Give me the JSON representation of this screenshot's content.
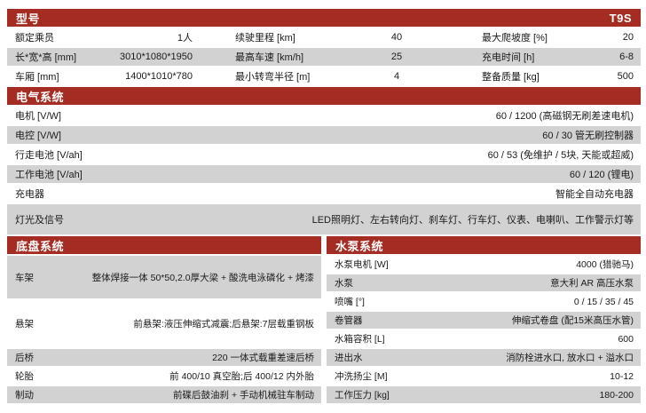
{
  "colors": {
    "accent": "#A52C22",
    "row_gray": "#D2D2D2",
    "header_text": "#FFFFFF",
    "body_text": "#1A1A1A"
  },
  "model_section": {
    "title": "型号",
    "model": "T9S",
    "rows": [
      {
        "label1": "额定乘员",
        "value1": "1人",
        "label2": "续驶里程 [km]",
        "value2": "40",
        "label3": "最大爬坡度 [%]",
        "value3": "20"
      },
      {
        "label1": "长*宽*高 [mm]",
        "value1": "3010*1080*1950",
        "label2": "最高车速 [km/h]",
        "value2": "25",
        "label3": "充电时间 [h]",
        "value3": "6-8"
      },
      {
        "label1": "车厢 [mm]",
        "value1": "1400*1010*780",
        "label2": "最小转弯半径 [m]",
        "value2": "4",
        "label3": "整备质量 [kg]",
        "value3": "500"
      }
    ]
  },
  "electrical_section": {
    "title": "电气系统",
    "rows": [
      {
        "label": "电机 [V/W]",
        "value": "60 / 1200 (高磁钢无刷差速电机)"
      },
      {
        "label": "电控 [V/W]",
        "value": "60 / 30 管无刷控制器"
      },
      {
        "label": "行走电池 [V/ah]",
        "value": "60 / 53 (免维护 / 5块, 天能或超威)"
      },
      {
        "label": "工作电池 [V/ah]",
        "value": "60 / 120 (锂电)"
      },
      {
        "label": "充电器",
        "value": "智能全自动充电器"
      },
      {
        "label": "灯光及信号",
        "value": "LED照明灯、左右转向灯、刹车灯、行车灯、仪表、电喇叭、工作警示灯等"
      }
    ]
  },
  "chassis_section": {
    "title": "底盘系统",
    "rows": [
      {
        "label": "车架",
        "value": "整体焊接一体 50*50,2.0厚大梁 + 酸洗电泳磷化 + 烤漆"
      },
      {
        "label": "悬架",
        "value": "前悬架:液压伸缩式减震;后悬架:7层载重钢板"
      },
      {
        "label": "后桥",
        "value": "220 一体式载重差速后桥"
      },
      {
        "label": "轮胎",
        "value": "前 400/10 真空胎;后 400/12 内外胎"
      },
      {
        "label": "制动",
        "value": "前碟后鼓油刹 + 手动机械驻车制动"
      }
    ]
  },
  "pump_section": {
    "title": "水泵系统",
    "rows": [
      {
        "label": "水泵电机 [W]",
        "value": "4000 (猎驰马)"
      },
      {
        "label": "水泵",
        "value": "意大利 AR 高压水泵"
      },
      {
        "label": "喷嘴 [°]",
        "value": "0 / 15 / 35 / 45"
      },
      {
        "label": "卷管器",
        "value": "伸缩式卷盘 (配15米高压水管)"
      },
      {
        "label": "水箱容积 [L]",
        "value": "600"
      },
      {
        "label": "进出水",
        "value": "消防栓进水口, 放水口 + 溢水口"
      },
      {
        "label": "冲洗扬尘 [M]",
        "value": "10-12"
      },
      {
        "label": "工作压力 [kg]",
        "value": "180-200"
      }
    ]
  }
}
